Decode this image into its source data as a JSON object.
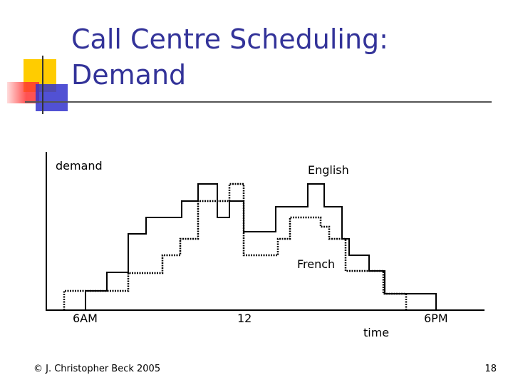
{
  "header": {
    "title_lines": [
      "Call Centre Scheduling:",
      "Demand"
    ]
  },
  "diagram": {
    "y_label": "demand",
    "x_label": "time",
    "series_labels": [
      "English",
      "French"
    ],
    "x_ticks": [
      "6AM",
      "12",
      "6PM"
    ]
  },
  "footer": {
    "copyright": "© J. Christopher Beck 2005",
    "page": "18"
  }
}
